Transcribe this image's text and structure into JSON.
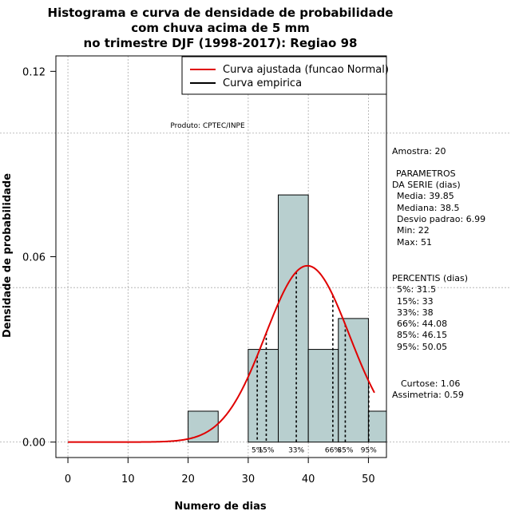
{
  "chart_data": {
    "type": "bar",
    "title_lines": [
      "Histograma e curva de densidade de probabilidade",
      "com chuva acima de 5 mm",
      "no trimestre DJF (1998-2017): Regiao 98"
    ],
    "xlabel": "Numero de dias",
    "ylabel": "Densidade de probabilidade",
    "xlim": [
      -2,
      53
    ],
    "ylim": [
      -0.005,
      0.125
    ],
    "x_ticks": [
      0,
      10,
      20,
      30,
      40,
      50
    ],
    "y_ticks": [
      0.0,
      0.06,
      0.12
    ],
    "y_tick_labels": [
      "0.00",
      "0.06",
      "0.12"
    ],
    "grid_x": [
      0,
      10,
      20,
      30,
      40,
      50
    ],
    "grid_y": [
      0.0,
      0.05,
      0.1
    ],
    "bins": [
      {
        "start": 20,
        "end": 25,
        "density": 0.01
      },
      {
        "start": 30,
        "end": 35,
        "density": 0.03
      },
      {
        "start": 35,
        "end": 40,
        "density": 0.08
      },
      {
        "start": 40,
        "end": 45,
        "density": 0.03
      },
      {
        "start": 45,
        "end": 50,
        "density": 0.04
      },
      {
        "start": 50,
        "end": 55,
        "density": 0.01
      }
    ],
    "normal_fit": {
      "mean": 39.85,
      "sd": 6.99,
      "x_start": 0,
      "x_end": 51
    },
    "legend": [
      {
        "label": "Curva ajustada (funcao Normal)",
        "color": "#e00000"
      },
      {
        "label": "Curva empirica",
        "color": "#000000"
      }
    ],
    "percentiles": [
      {
        "label": "5%",
        "value": 31.5
      },
      {
        "label": "15%",
        "value": 33
      },
      {
        "label": "33%",
        "value": 38
      },
      {
        "label": "66%",
        "value": 44.08
      },
      {
        "label": "85%",
        "value": 46.15
      },
      {
        "label": "95%",
        "value": 50.05
      }
    ],
    "credit": "Produto: CPTEC/INPE",
    "bar_fill": "#b8cfcf",
    "curve_color": "#e00000"
  },
  "side_panel": {
    "amostra": "Amostra: 20",
    "param_header_1": "PARAMETROS",
    "param_header_2": "DA SERIE (dias)",
    "media": "Media: 39.85",
    "mediana": "Mediana: 38.5",
    "desvio": "Desvio padrao: 6.99",
    "min": "Min: 22",
    "max": "Max: 51",
    "percentis_header": "PERCENTIS (dias)",
    "p5": "5%: 31.5",
    "p15": "15%: 33",
    "p33": "33%: 38",
    "p66": "66%: 44.08",
    "p85": "85%: 46.15",
    "p95": "95%: 50.05",
    "curtose": "Curtose: 1.06",
    "assimetria": "Assimetria: 0.59"
  }
}
